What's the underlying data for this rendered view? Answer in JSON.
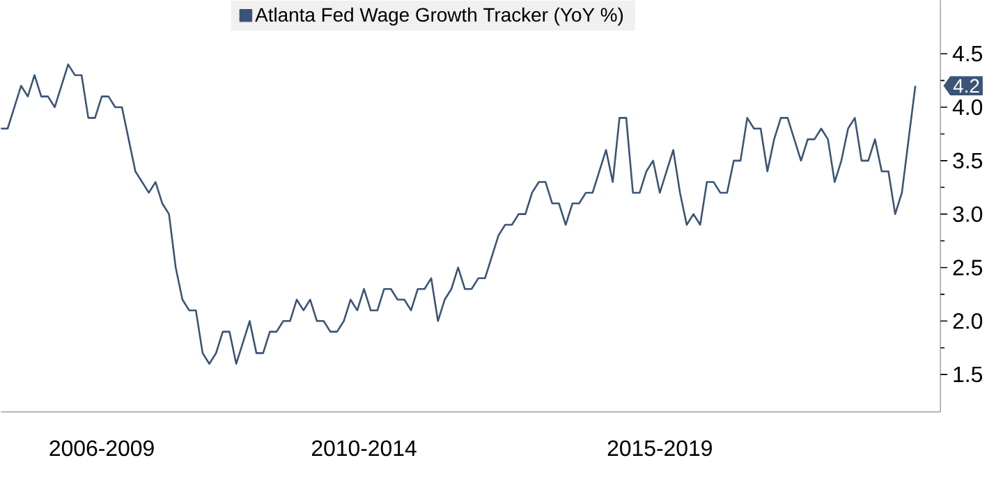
{
  "chart_data": {
    "type": "line",
    "categories": [
      null,
      null,
      null,
      null,
      null,
      null,
      null,
      null,
      null,
      null,
      null,
      null,
      null,
      null,
      null,
      "2006-2009",
      null,
      null,
      null,
      null,
      null,
      null,
      null,
      null,
      null,
      null,
      null,
      null,
      null,
      null,
      null,
      null,
      null,
      null,
      null,
      null,
      null,
      null,
      null,
      null,
      null,
      null,
      null,
      null,
      null,
      null,
      null,
      null,
      null,
      null,
      null,
      null,
      null,
      null,
      "2010-2014",
      null,
      null,
      null,
      null,
      null,
      null,
      null,
      null,
      null,
      null,
      null,
      null,
      null,
      null,
      null,
      null,
      null,
      null,
      null,
      null,
      null,
      null,
      null,
      null,
      null,
      null,
      null,
      null,
      null,
      null,
      null,
      null,
      null,
      null,
      null,
      null,
      null,
      null,
      null,
      null,
      null,
      null,
      null,
      "2015-2019",
      null,
      null,
      null,
      null,
      null,
      null,
      null,
      null,
      null,
      null,
      null,
      null,
      null,
      null,
      null,
      null,
      null,
      null,
      null,
      null,
      null,
      null,
      null,
      null,
      null,
      null,
      null,
      null,
      null,
      null,
      null,
      null,
      null,
      null,
      null,
      null,
      null,
      null
    ],
    "series": [
      {
        "name": "Atlanta Fed Wage Growth Tracker (YoY %)",
        "color": "#3b5477",
        "values": [
          3.8,
          3.8,
          4.0,
          4.2,
          4.1,
          4.3,
          4.1,
          4.1,
          4.0,
          4.2,
          4.4,
          4.3,
          4.3,
          3.9,
          3.9,
          4.1,
          4.1,
          4.0,
          4.0,
          3.7,
          3.4,
          3.3,
          3.2,
          3.3,
          3.1,
          3.0,
          2.5,
          2.2,
          2.1,
          2.1,
          1.7,
          1.6,
          1.7,
          1.9,
          1.9,
          1.6,
          1.8,
          2.0,
          1.7,
          1.7,
          1.9,
          1.9,
          2.0,
          2.0,
          2.2,
          2.1,
          2.2,
          2.0,
          2.0,
          1.9,
          1.9,
          2.0,
          2.2,
          2.1,
          2.3,
          2.1,
          2.1,
          2.3,
          2.3,
          2.2,
          2.2,
          2.1,
          2.3,
          2.3,
          2.4,
          2.0,
          2.2,
          2.3,
          2.5,
          2.3,
          2.3,
          2.4,
          2.4,
          2.6,
          2.8,
          2.9,
          2.9,
          3.0,
          3.0,
          3.2,
          3.3,
          3.3,
          3.1,
          3.1,
          2.9,
          3.1,
          3.1,
          3.2,
          3.2,
          3.4,
          3.6,
          3.3,
          3.9,
          3.9,
          3.2,
          3.2,
          3.4,
          3.5,
          3.2,
          3.4,
          3.6,
          3.2,
          2.9,
          3.0,
          2.9,
          3.3,
          3.3,
          3.2,
          3.2,
          3.5,
          3.5,
          3.9,
          3.8,
          3.8,
          3.4,
          3.7,
          3.9,
          3.9,
          3.7,
          3.5,
          3.7,
          3.7,
          3.8,
          3.7,
          3.3,
          3.5,
          3.8,
          3.9,
          3.5,
          3.5,
          3.7,
          3.4,
          3.4,
          3.0,
          3.2,
          3.7,
          4.2
        ]
      }
    ],
    "ylim": [
      1.15,
      5.0
    ],
    "yticks": [
      1.5,
      {
        "value": 2,
        "label": "2.0"
      },
      2.5,
      {
        "value": 3,
        "label": "3.0"
      },
      3.5,
      {
        "value": 4,
        "label": "4.0"
      },
      4.5
    ],
    "annotations": [
      "4.2"
    ],
    "legend": "top",
    "marker": "none",
    "line_style": "solid"
  }
}
